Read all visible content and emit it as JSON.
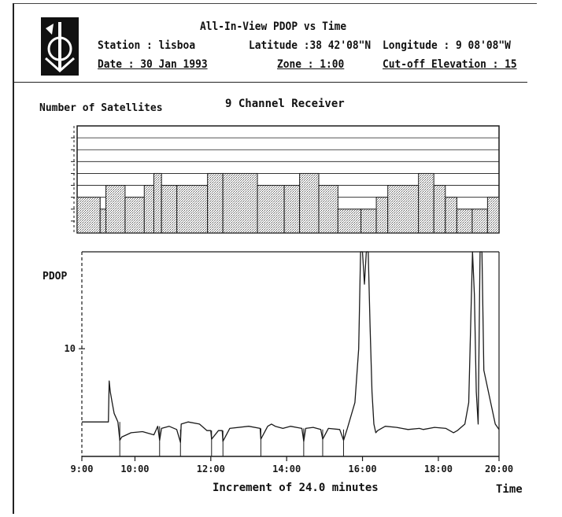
{
  "header": {
    "title": "All-In-View PDOP vs Time",
    "station": "Station : lisboa",
    "date": "Date : 30 Jan 1993",
    "latitude": "Latitude :38 42'08\"N",
    "zone": "Zone : 1:00",
    "longitude": "Longitude : 9 08'08\"W",
    "cutoff": "Cut-off Elevation : 15"
  },
  "colors": {
    "ink": "#1a1a1a",
    "stipple": "#bdbdbd"
  },
  "chart_data": [
    {
      "type": "bar",
      "title": "9 Channel Receiver",
      "ylabel": "Number of Satellites",
      "xlim": [
        9,
        20
      ],
      "ylim": [
        2,
        11
      ],
      "grid": true,
      "segments": [
        {
          "x0": 9.0,
          "x1": 9.6,
          "y": 5
        },
        {
          "x0": 9.6,
          "x1": 9.75,
          "y": 4
        },
        {
          "x0": 9.75,
          "x1": 10.25,
          "y": 6
        },
        {
          "x0": 10.25,
          "x1": 10.75,
          "y": 5
        },
        {
          "x0": 10.75,
          "x1": 11.0,
          "y": 6
        },
        {
          "x0": 11.0,
          "x1": 11.2,
          "y": 7
        },
        {
          "x0": 11.2,
          "x1": 11.6,
          "y": 6
        },
        {
          "x0": 11.6,
          "x1": 12.4,
          "y": 6
        },
        {
          "x0": 12.4,
          "x1": 12.8,
          "y": 7
        },
        {
          "x0": 12.8,
          "x1": 13.7,
          "y": 7
        },
        {
          "x0": 13.7,
          "x1": 14.4,
          "y": 6
        },
        {
          "x0": 14.4,
          "x1": 14.8,
          "y": 6
        },
        {
          "x0": 14.8,
          "x1": 15.3,
          "y": 7
        },
        {
          "x0": 15.3,
          "x1": 15.8,
          "y": 6
        },
        {
          "x0": 15.8,
          "x1": 16.4,
          "y": 4
        },
        {
          "x0": 16.4,
          "x1": 16.8,
          "y": 4
        },
        {
          "x0": 16.8,
          "x1": 17.1,
          "y": 5
        },
        {
          "x0": 17.1,
          "x1": 17.9,
          "y": 6
        },
        {
          "x0": 17.9,
          "x1": 18.3,
          "y": 7
        },
        {
          "x0": 18.3,
          "x1": 18.6,
          "y": 6
        },
        {
          "x0": 18.6,
          "x1": 18.9,
          "y": 5
        },
        {
          "x0": 18.9,
          "x1": 19.3,
          "y": 4
        },
        {
          "x0": 19.3,
          "x1": 19.7,
          "y": 4
        },
        {
          "x0": 19.7,
          "x1": 20.0,
          "y": 5
        }
      ]
    },
    {
      "type": "line",
      "ylabel": "PDOP",
      "xlabel": "Increment of 24.0 minutes",
      "xlabel_right": "Time",
      "x_ticks": [
        "9:00",
        "10:00",
        "12:00",
        "14:00",
        "16:00",
        "18:00",
        "20:00"
      ],
      "x_tick_values": [
        9,
        10.4,
        12.4,
        14.4,
        16.4,
        18.4,
        20.0
      ],
      "y_ticks": [
        "10"
      ],
      "y_tick_values": [
        10
      ],
      "xlim": [
        9,
        20
      ],
      "ylim": [
        0,
        19
      ],
      "series": [
        {
          "x": [
            9.0,
            9.7,
            9.72,
            9.75,
            9.8,
            9.85,
            9.9,
            9.95,
            10.0,
            10.05,
            10.3,
            10.6,
            10.9,
            11.0,
            11.05,
            11.1,
            11.3,
            11.5,
            11.6,
            11.62,
            11.8,
            12.1,
            12.3,
            12.4,
            12.42,
            12.6,
            12.7,
            12.72,
            12.9,
            13.4,
            13.7,
            13.72,
            13.9,
            14.0,
            14.1,
            14.3,
            14.5,
            14.8,
            14.85,
            14.9,
            15.1,
            15.3,
            15.35,
            15.5,
            15.8,
            15.9,
            16.0,
            16.2,
            16.3,
            16.35,
            16.4,
            16.45,
            16.5,
            16.55,
            16.6,
            16.65,
            16.7,
            16.75,
            16.8,
            16.9,
            17.0,
            17.3,
            17.6,
            17.9,
            18.0,
            18.3,
            18.6,
            18.8,
            18.9,
            19.1,
            19.2,
            19.3,
            19.35,
            19.4,
            19.45,
            19.5,
            19.55,
            19.6,
            19.9,
            20.0
          ],
          "y": [
            3.2,
            3.2,
            7.0,
            6.0,
            5.0,
            4.0,
            3.6,
            3.2,
            1.5,
            1.8,
            2.2,
            2.3,
            2.0,
            2.8,
            1.5,
            2.6,
            2.8,
            2.5,
            1.3,
            3.0,
            3.2,
            3.0,
            2.4,
            2.4,
            1.6,
            2.4,
            2.4,
            1.4,
            2.6,
            2.8,
            2.6,
            1.6,
            2.8,
            3.0,
            2.8,
            2.6,
            2.8,
            2.6,
            1.4,
            2.6,
            2.7,
            2.5,
            1.6,
            2.6,
            2.5,
            1.5,
            2.6,
            5.0,
            10.0,
            19.0,
            19.0,
            16.0,
            19.0,
            19.0,
            12.0,
            6.0,
            3.0,
            2.2,
            2.4,
            2.6,
            2.8,
            2.7,
            2.5,
            2.6,
            2.5,
            2.7,
            2.6,
            2.2,
            2.4,
            3.0,
            5.0,
            19.0,
            15.0,
            6.0,
            3.0,
            19.0,
            19.0,
            8.0,
            3.0,
            2.5
          ]
        }
      ]
    }
  ]
}
